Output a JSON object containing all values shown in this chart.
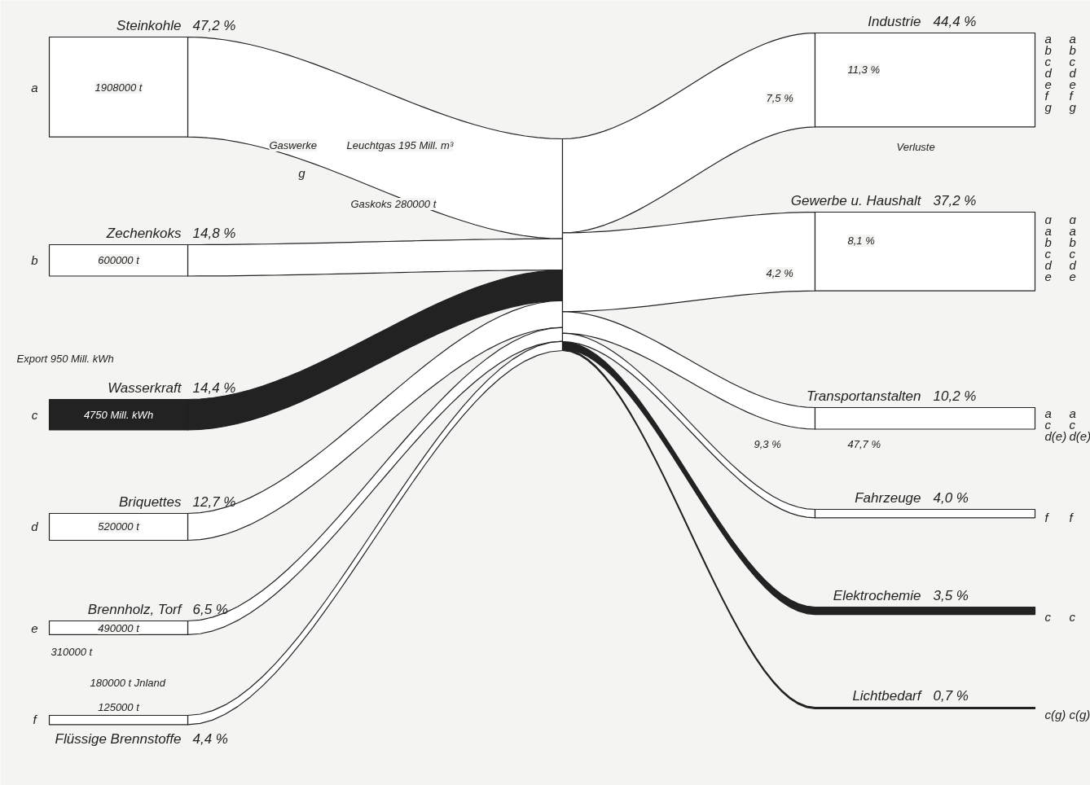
{
  "chart_data": {
    "type": "other",
    "categories": [
      "Steinkohle",
      "Zechenkoks",
      "Wasserkraft",
      "Briquettes",
      "Brennholz, Torf",
      "Flüssige Brennstoffe",
      "Industrie",
      "Gewerbe u. Haushalt",
      "Transportanstalten",
      "Fahrzeuge",
      "Elektrochemie",
      "Lichtbedarf"
    ],
    "series": [
      {
        "values": [
          47.2,
          14.8,
          14.4,
          12.7,
          6.5,
          4.4,
          null,
          null,
          null,
          null,
          null,
          null
        ],
        "value_labels": [
          "47,2 %",
          "14,8 %",
          "14,4 %",
          "12,7 %",
          "6,5 %",
          "4,4 %",
          null,
          null,
          null,
          null,
          null,
          null
        ],
        "colors": [
          "#ffffff",
          "#ffffff",
          "#222222",
          "#ffffff",
          "#ffffff",
          "#ffffff",
          null,
          null,
          null,
          null,
          null,
          null
        ]
      },
      {
        "values": [
          null,
          null,
          null,
          null,
          null,
          null,
          44.4,
          37.2,
          10.2,
          4.0,
          3.5,
          0.7
        ],
        "value_labels": [
          null,
          null,
          null,
          null,
          null,
          null,
          "44,4 %",
          "37,2 %",
          "10,2 %",
          "4,0 %",
          "3,5 %",
          "0,7 %"
        ],
        "colors": [
          null,
          null,
          null,
          null,
          null,
          null,
          "#ffffff",
          "#ffffff",
          "#ffffff",
          "#ffffff",
          "#222222",
          "#222222"
        ]
      }
    ],
    "annotations": [
      "1908000 t",
      "600000 t",
      "4750 Mill. kWh",
      "520000 t",
      "490000 t",
      "125000 t",
      "310000 t",
      "180000 t Jnland",
      "Export 950 Mill. kWh",
      "Gaswerke",
      "Leuchtgas 195 Mill. m³",
      "Gaskoks 280000 t",
      "11,3 %",
      "7,5 %",
      "8,1 %",
      "4,2 %",
      "9,3 %",
      "47,7 %",
      "Verluste",
      "a",
      "b",
      "c",
      "d",
      "e",
      "f",
      "g",
      "a",
      "b",
      "c",
      "d",
      "e",
      "f",
      "g",
      "a",
      "b",
      "c",
      "d",
      "e",
      "f",
      "g",
      "g",
      "a",
      "b",
      "c",
      "d",
      "e",
      "g",
      "a",
      "b",
      "c",
      "d",
      "e",
      "a",
      "c",
      "d(e)",
      "a",
      "c",
      "d(e)",
      "f",
      "f",
      "c",
      "c",
      "c(g)",
      "c(g)"
    ]
  }
}
